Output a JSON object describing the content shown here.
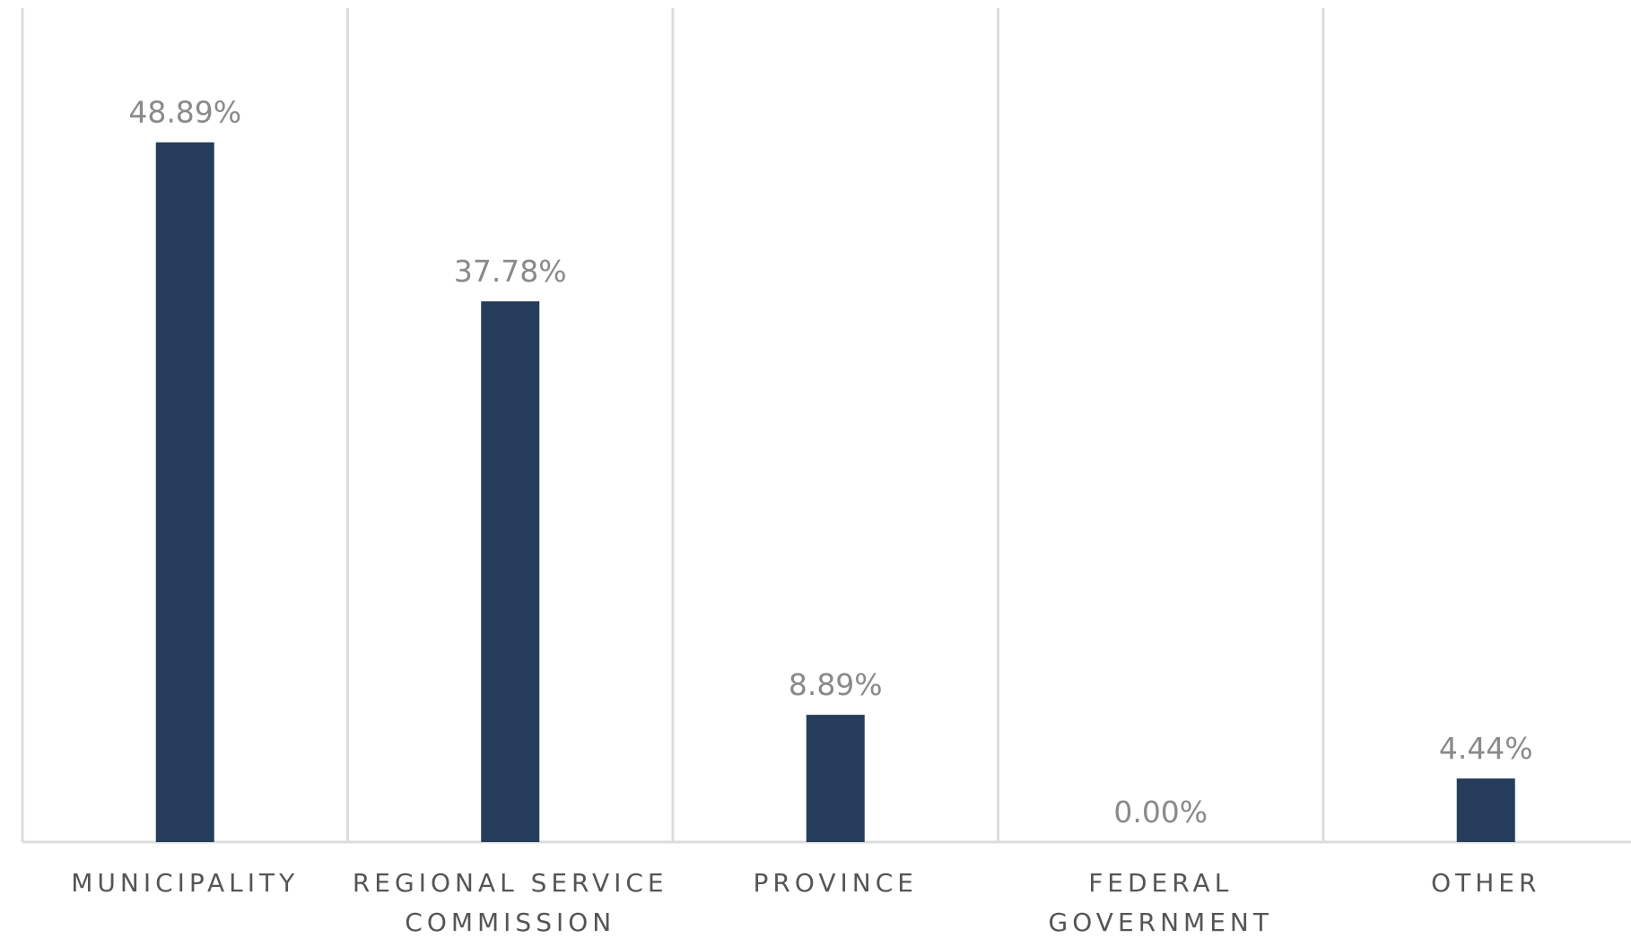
{
  "chart_data": {
    "type": "bar",
    "categories": [
      "MUNICIPALITY",
      "REGIONAL SERVICE COMMISSION",
      "PROVINCE",
      "FEDERAL GOVERNMENT",
      "OTHER"
    ],
    "values": [
      48.89,
      37.78,
      8.89,
      0,
      4.44
    ],
    "value_labels": [
      "48.89%",
      "37.78%",
      "8.89%",
      "0.00%",
      "4.44%"
    ],
    "color": "#253d5b",
    "ylim": [
      0,
      50
    ]
  }
}
